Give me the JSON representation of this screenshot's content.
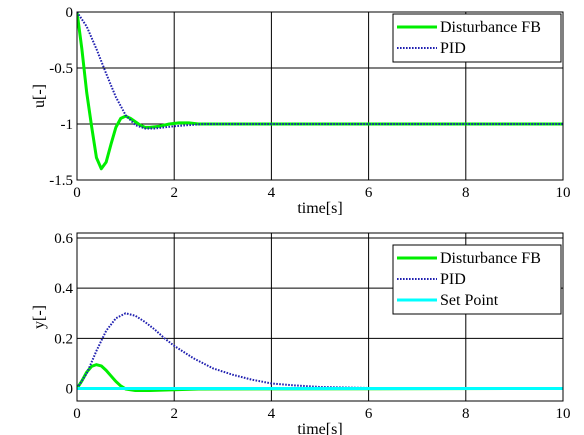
{
  "chart_data": [
    {
      "type": "line",
      "xlabel": "time[s]",
      "ylabel": "u[-]",
      "xlim": [
        0,
        10
      ],
      "ylim": [
        -1.5,
        0
      ],
      "xticks": [
        0,
        2,
        4,
        6,
        8,
        10
      ],
      "xtick_labels": [
        "0",
        "2",
        "4",
        "6",
        "8",
        "10"
      ],
      "yticks": [
        0,
        -0.5,
        -1,
        -1.5
      ],
      "ytick_labels": [
        "0",
        "-0.5",
        "-1",
        "-1.5"
      ],
      "grid": true,
      "legend": "top-right",
      "series": [
        {
          "name": "Disturbance FB",
          "color": "#00ee00",
          "style": "solid",
          "x": [
            0,
            0.1,
            0.2,
            0.3,
            0.4,
            0.5,
            0.6,
            0.7,
            0.8,
            0.9,
            1.0,
            1.1,
            1.2,
            1.3,
            1.4,
            1.5,
            1.7,
            1.9,
            2.1,
            2.3,
            2.5,
            3.0,
            10
          ],
          "y": [
            0,
            -0.33,
            -0.72,
            -1.02,
            -1.3,
            -1.4,
            -1.34,
            -1.18,
            -1.03,
            -0.95,
            -0.93,
            -0.95,
            -0.98,
            -1.01,
            -1.03,
            -1.03,
            -1.02,
            -1.0,
            -0.99,
            -0.99,
            -1.0,
            -1.0,
            -1.0
          ]
        },
        {
          "name": "PID",
          "color": "#2020b0",
          "style": "dotted",
          "x": [
            0,
            0.2,
            0.4,
            0.6,
            0.8,
            1.0,
            1.2,
            1.4,
            1.6,
            1.8,
            2.0,
            2.3,
            2.6,
            3.0,
            10
          ],
          "y": [
            0,
            -0.13,
            -0.33,
            -0.55,
            -0.76,
            -0.92,
            -1.01,
            -1.04,
            -1.04,
            -1.03,
            -1.02,
            -1.01,
            -1.0,
            -1.0,
            -1.0
          ]
        }
      ]
    },
    {
      "type": "line",
      "xlabel": "time[s]",
      "ylabel": "y[-]",
      "xlim": [
        0,
        10
      ],
      "ylim": [
        -0.05,
        0.62
      ],
      "xticks": [
        0,
        2,
        4,
        6,
        8,
        10
      ],
      "xtick_labels": [
        "0",
        "2",
        "4",
        "6",
        "8",
        "10"
      ],
      "yticks": [
        0,
        0.2,
        0.4,
        0.6
      ],
      "ytick_labels": [
        "0",
        "0.2",
        "0.4",
        "0.6"
      ],
      "grid": true,
      "legend": "top-right",
      "series": [
        {
          "name": "Disturbance FB",
          "color": "#00ee00",
          "style": "solid",
          "x": [
            0,
            0.1,
            0.2,
            0.3,
            0.4,
            0.5,
            0.6,
            0.7,
            0.8,
            0.9,
            1.0,
            1.2,
            1.5,
            2.0,
            2.5,
            10
          ],
          "y": [
            0,
            0.03,
            0.065,
            0.088,
            0.095,
            0.09,
            0.072,
            0.05,
            0.028,
            0.01,
            -0.002,
            -0.008,
            -0.008,
            -0.005,
            -0.002,
            0
          ]
        },
        {
          "name": "PID",
          "color": "#2020b0",
          "style": "dotted",
          "x": [
            0,
            0.2,
            0.4,
            0.6,
            0.8,
            1.0,
            1.2,
            1.4,
            1.6,
            1.8,
            2.0,
            2.4,
            2.8,
            3.2,
            3.6,
            4.0,
            4.5,
            5.0,
            6.0,
            7.0,
            10
          ],
          "y": [
            0,
            0.06,
            0.15,
            0.23,
            0.28,
            0.3,
            0.29,
            0.265,
            0.235,
            0.2,
            0.17,
            0.12,
            0.08,
            0.055,
            0.035,
            0.02,
            0.012,
            0.006,
            0.002,
            0,
            0
          ]
        },
        {
          "name": "Set Point",
          "color": "#00ffff",
          "style": "solid",
          "x": [
            0,
            10
          ],
          "y": [
            0,
            0
          ]
        }
      ]
    }
  ]
}
